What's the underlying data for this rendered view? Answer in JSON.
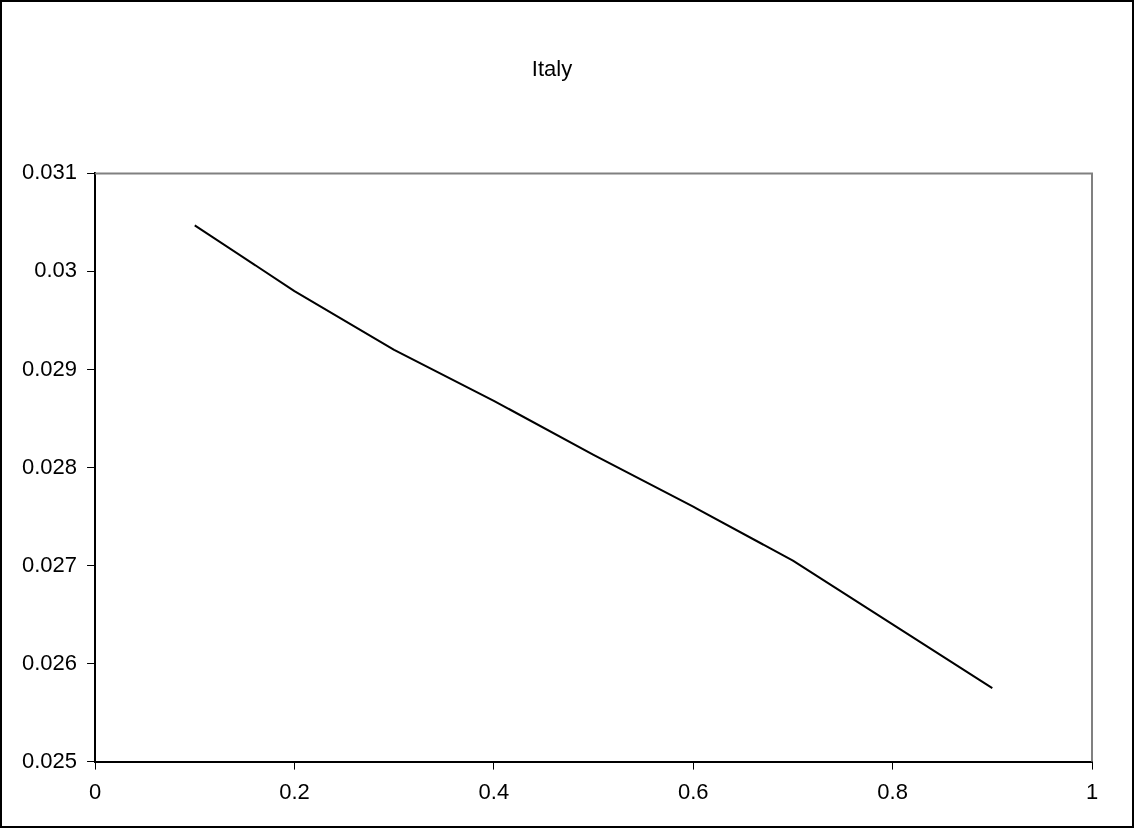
{
  "chart_data": {
    "type": "line",
    "title": "Italy",
    "x": [
      0.1,
      0.2,
      0.3,
      0.4,
      0.5,
      0.6,
      0.7,
      0.8,
      0.9
    ],
    "series": [
      {
        "color": "#000000",
        "values": [
          0.03047,
          0.0298,
          0.0292,
          0.02868,
          0.02813,
          0.0276,
          0.02705,
          0.0264,
          0.02575
        ]
      }
    ],
    "xlim": [
      0,
      1
    ],
    "xticks": [
      0,
      0.2,
      0.4,
      0.6,
      0.8,
      1
    ],
    "ylim": [
      0.025,
      0.031
    ],
    "yticks": [
      0.025,
      0.026,
      0.027,
      0.028,
      0.029,
      0.03,
      0.031
    ],
    "grid": false,
    "legend": false,
    "marker": "none",
    "line_style": "solid"
  }
}
